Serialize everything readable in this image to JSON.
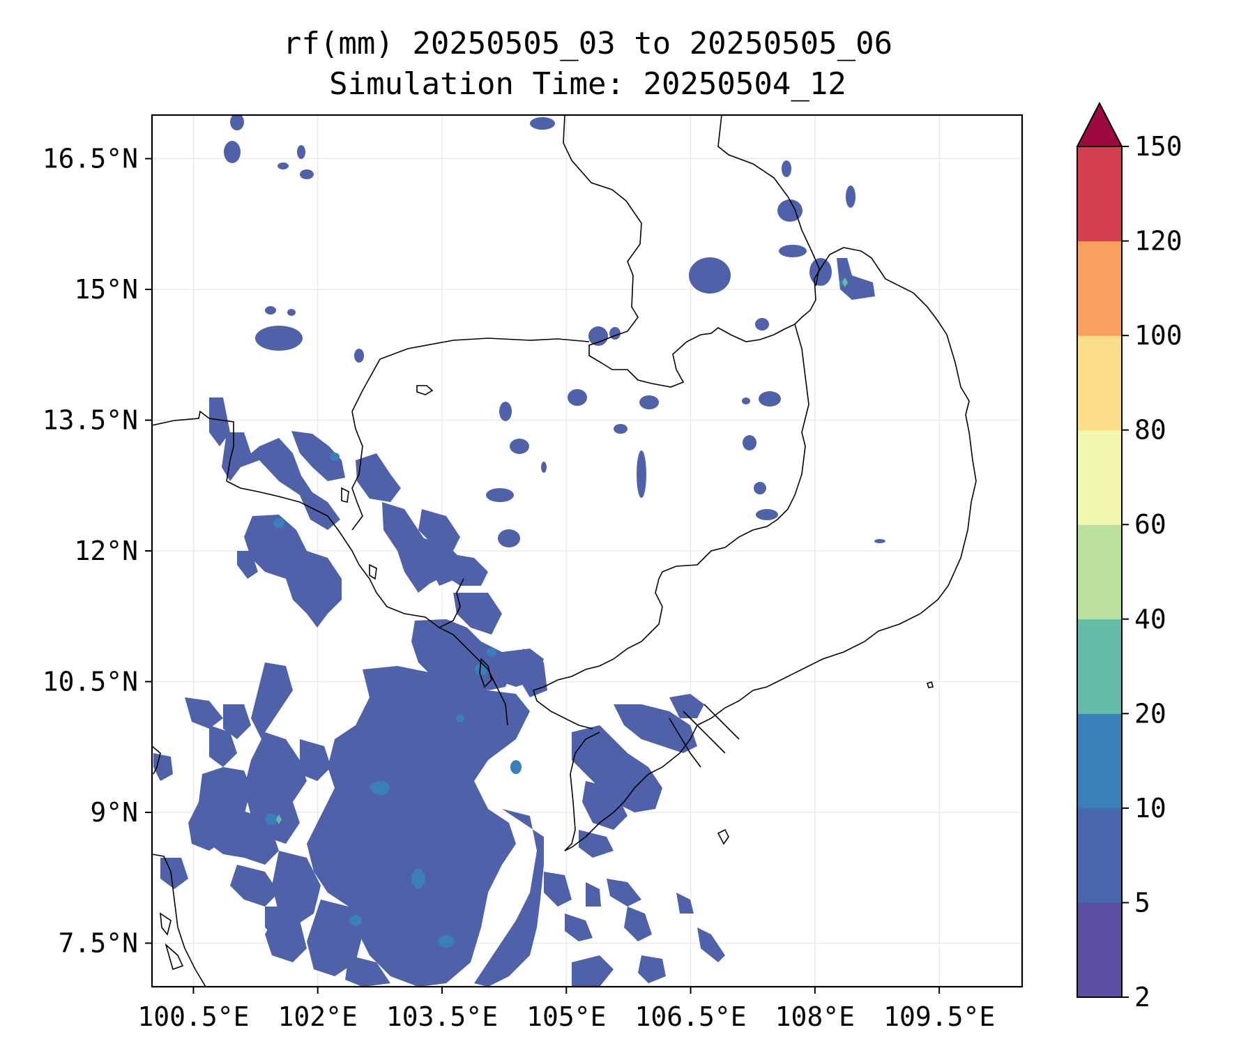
{
  "title": {
    "line1": "rf(mm) 20250505_03 to 20250505_06",
    "line2": "Simulation Time: 20250504_12"
  },
  "map": {
    "lon_range": [
      100.0,
      110.5
    ],
    "lat_range": [
      7.0,
      17.0
    ],
    "x_ticks": [
      "100.5°E",
      "102°E",
      "103.5°E",
      "105°E",
      "106.5°E",
      "108°E",
      "109.5°E"
    ],
    "y_ticks": [
      "16.5°N",
      "15°N",
      "13.5°N",
      "12°N",
      "10.5°N",
      "9°N",
      "7.5°N"
    ],
    "gridlines": true,
    "fill_color_main": "#4f61a8",
    "peak_markers": [
      {
        "lon": 107.9,
        "lat": 15.05,
        "level": "20-40"
      },
      {
        "lon": 101.6,
        "lat": 8.85,
        "level": "20-40"
      }
    ]
  },
  "colorbar": {
    "levels": [
      "2",
      "5",
      "10",
      "20",
      "40",
      "60",
      "80",
      "100",
      "120",
      "150"
    ],
    "colors": [
      "#5a4fa2",
      "#4a65ad",
      "#3a7fb9",
      "#63bba8",
      "#bde19e",
      "#f2f9ae",
      "#fbdd89",
      "#f9a05e",
      "#d4404f",
      "#9c0a3f"
    ],
    "extend": "max"
  }
}
